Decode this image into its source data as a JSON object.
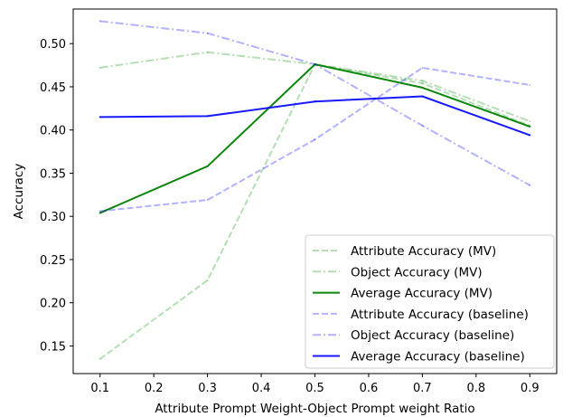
{
  "chart_data": {
    "type": "line",
    "title": "",
    "xlabel": "Attribute Prompt Weight-Object Prompt weight Ratio",
    "ylabel": "Accuracy",
    "x": [
      0.1,
      0.3,
      0.5,
      0.7,
      0.9
    ],
    "xlim": [
      0.05,
      0.95
    ],
    "ylim": [
      0.118,
      0.54
    ],
    "xticks": [
      0.1,
      0.2,
      0.3,
      0.4,
      0.5,
      0.6,
      0.7,
      0.8,
      0.9
    ],
    "xtick_labels": [
      "0.1",
      "0.2",
      "0.3",
      "0.4",
      "0.5",
      "0.6",
      "0.7",
      "0.8",
      "0.9"
    ],
    "yticks": [
      0.15,
      0.2,
      0.25,
      0.3,
      0.35,
      0.4,
      0.45,
      0.5
    ],
    "ytick_labels": [
      "0.15",
      "0.20",
      "0.25",
      "0.30",
      "0.35",
      "0.40",
      "0.45",
      "0.50"
    ],
    "grid": false,
    "legend_position": "lower-right",
    "series": [
      {
        "name": "Attribute Accuracy (MV)",
        "values": [
          0.135,
          0.226,
          0.476,
          0.454,
          0.405
        ],
        "color": "#2ca02c",
        "opacity": 0.35,
        "dash": "dashed"
      },
      {
        "name": "Object Accuracy (MV)",
        "values": [
          0.472,
          0.49,
          0.476,
          0.457,
          0.41
        ],
        "color": "#2ca02c",
        "opacity": 0.35,
        "dash": "dashdot"
      },
      {
        "name": "Average Accuracy (MV)",
        "values": [
          0.304,
          0.358,
          0.476,
          0.449,
          0.404
        ],
        "color": "#008000",
        "opacity": 0.95,
        "dash": "solid"
      },
      {
        "name": "Attribute Accuracy (baseline)",
        "values": [
          0.306,
          0.319,
          0.389,
          0.472,
          0.452
        ],
        "color": "#0000ff",
        "opacity": 0.3,
        "dash": "dashed"
      },
      {
        "name": "Object Accuracy (baseline)",
        "values": [
          0.526,
          0.512,
          0.476,
          0.405,
          0.336
        ],
        "color": "#0000ff",
        "opacity": 0.3,
        "dash": "dashdot"
      },
      {
        "name": "Average Accuracy (baseline)",
        "values": [
          0.415,
          0.416,
          0.433,
          0.439,
          0.394
        ],
        "color": "#0000ff",
        "opacity": 0.9,
        "dash": "solid"
      }
    ]
  }
}
